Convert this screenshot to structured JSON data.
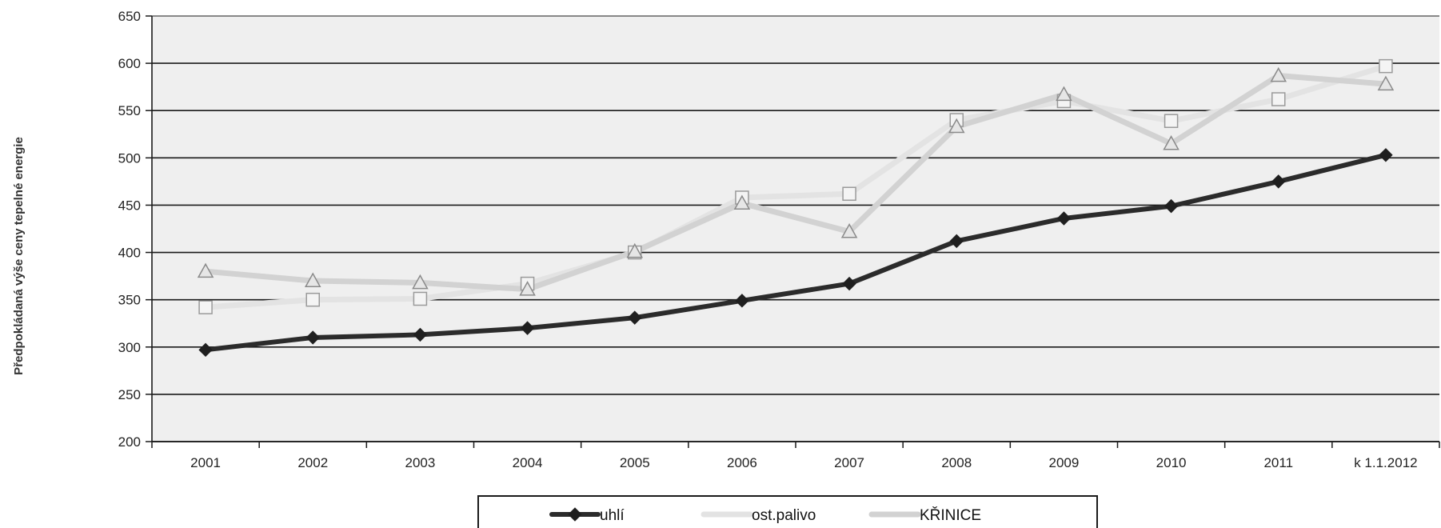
{
  "chart_data": {
    "type": "line",
    "title": "",
    "xlabel": "",
    "ylabel": "Předpokládaná výše ceny tepelné energie",
    "ylim": [
      200,
      650
    ],
    "yticks": [
      200,
      250,
      300,
      350,
      400,
      450,
      500,
      550,
      600,
      650
    ],
    "categories": [
      "2001",
      "2002",
      "2003",
      "2004",
      "2005",
      "2006",
      "2007",
      "2008",
      "2009",
      "2010",
      "2011",
      "k 1.1.2012"
    ],
    "grid": true,
    "legend_position": "bottom",
    "series": [
      {
        "name": "uhlí",
        "marker": "diamond",
        "color": "#2b2b2b",
        "values": [
          297,
          310,
          313,
          320,
          331,
          349,
          367,
          412,
          436,
          449,
          475,
          503
        ]
      },
      {
        "name": "ost.palivo",
        "marker": "square",
        "color": "#e3e3e3",
        "values": [
          342,
          350,
          351,
          367,
          400,
          458,
          462,
          540,
          560,
          539,
          562,
          597
        ]
      },
      {
        "name": "KŘINICE",
        "marker": "triangle",
        "color": "#d2d2d2",
        "values": [
          380,
          370,
          368,
          361,
          401,
          452,
          422,
          533,
          567,
          515,
          587,
          578
        ]
      }
    ]
  }
}
